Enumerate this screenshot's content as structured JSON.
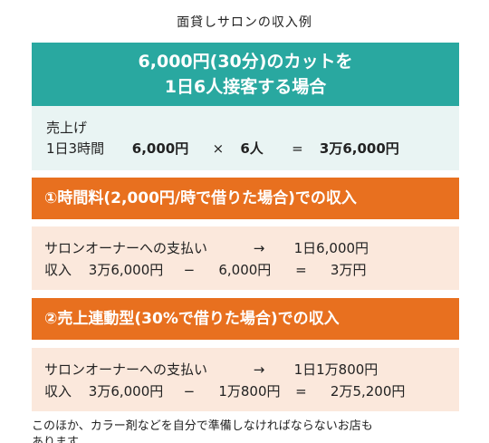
{
  "title": "面貸しサロンの収入例",
  "scenario": {
    "line1": "6,000円(30分)のカットを",
    "line2": "1日6人接客する場合"
  },
  "sales": {
    "label": "売上げ",
    "hours": "1日3時間",
    "price": "6,000円",
    "times": "×",
    "people": "6人",
    "equals": "=",
    "total": "3万6,000円"
  },
  "hourly": {
    "heading": "①時間料(2,000円/時で借りた場合)での収入",
    "pay_label": "サロンオーナーへの支払い",
    "arrow": "→",
    "pay_value": "1日6,000円",
    "income_label": "収入",
    "income_gross": "3万6,000円",
    "minus": "−",
    "income_deduct": "6,000円",
    "equals": "=",
    "income_net": "3万円"
  },
  "linked": {
    "heading": "②売上連動型(30%で借りた場合)での収入",
    "pay_label": "サロンオーナーへの支払い",
    "arrow": "→",
    "pay_value": "1日1万800円",
    "income_label": "収入",
    "income_gross": "3万6,000円",
    "minus": "−",
    "income_deduct": "1万800円",
    "equals": "=",
    "income_net": "2万5,200円"
  },
  "footer": {
    "line1": "このほか、カラー剤などを自分で準備しなければならないお店も",
    "line2": "あります"
  }
}
